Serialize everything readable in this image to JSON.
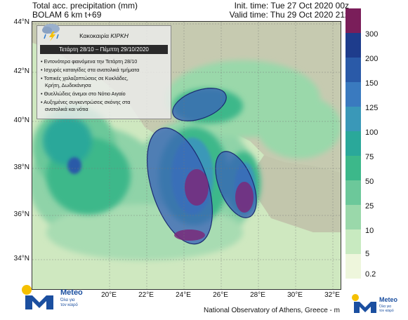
{
  "header": {
    "line1_left": "Total acc. precipitation (mm)",
    "line2_left": "BOLAM 6 km t+69",
    "line1_right": "Init. time: Tue 27 Oct 2020 00z",
    "line2_right": "Valid time: Thu 29 Oct 2020 21z"
  },
  "axes": {
    "lat_labels": [
      "44°N",
      "42°N",
      "40°N",
      "38°N",
      "36°N",
      "34°N"
    ],
    "lon_labels": [
      "20°E",
      "22°E",
      "24°E",
      "26°E",
      "28°E",
      "30°E",
      "32°E"
    ]
  },
  "panel": {
    "title_prefix": "Κακοκαιρία ",
    "title_name": "ΚΙΡΚΗ",
    "date_range": "Τετάρτη 28/10 – Πέμπτη 29/10/2020",
    "bullets": [
      "• Εντονότερα φαινόμενα την Τετάρτη 28/10",
      "• Ισχυρές καταιγίδες στα ανατολικά τμήματα",
      "• Τοπικές χαλαζοπτώσεις σε Κυκλάδες,",
      "Κρήτη, Δωδεκάνησα",
      "• Θυελλώδεις άνεμοι στο Νότιο Αιγαίο",
      "• Αυξημένες συγκεντρώσεις σκόνης στα",
      "ανατολικά και νότια"
    ]
  },
  "colorbar": {
    "labels": [
      "300",
      "200",
      "150",
      "125",
      "100",
      "75",
      "50",
      "25",
      "10",
      "5",
      "0.2"
    ],
    "colors": [
      "#7a1e5a",
      "#1e3c8c",
      "#2a5aa8",
      "#3a7abf",
      "#3a98b8",
      "#2aa89a",
      "#3cb88a",
      "#6cc89a",
      "#9ad8aa",
      "#c8eac0",
      "#eef6dc"
    ]
  },
  "branding": {
    "logo_name": "Meteo",
    "logo_tagline_1": "Όλα για",
    "logo_tagline_2": "τον καιρό",
    "footer": "National Observatory of Athens, Greece - m"
  },
  "colors": {
    "land": "#c8ccb4",
    "sea_light": "#8fd3a8",
    "sea_mid": "#4bbf8f",
    "rain_blue": "#3a62b8",
    "rain_core": "#7a2a7a",
    "brand_blue": "#1b4fa0",
    "brand_yellow": "#f5c000"
  }
}
